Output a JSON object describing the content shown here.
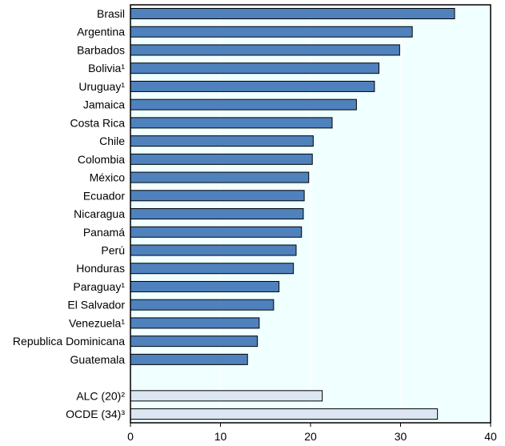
{
  "chart_data": {
    "type": "bar",
    "orientation": "horizontal",
    "categories": [
      "Brasil",
      "Argentina",
      "Barbados",
      "Bolivia¹",
      "Uruguay¹",
      "Jamaica",
      "Costa Rica",
      "Chile",
      "Colombia",
      "México",
      "Ecuador",
      "Nicaragua",
      "Panamá",
      "Perú",
      "Honduras",
      "Paraguay¹",
      "El Salvador",
      "Venezuela¹",
      "Republica Dominicana",
      "Guatemala",
      "",
      "ALC (20)²",
      "OCDE (34)³"
    ],
    "values": [
      36.0,
      31.3,
      29.9,
      27.6,
      27.1,
      25.1,
      22.4,
      20.3,
      20.2,
      19.8,
      19.3,
      19.2,
      19.0,
      18.4,
      18.1,
      16.5,
      15.9,
      14.3,
      14.1,
      13.0,
      null,
      21.3,
      34.1
    ],
    "highlight": [
      "ALC (20)²",
      "OCDE (34)³"
    ],
    "xlim": [
      0,
      40
    ],
    "xticks": [
      0,
      10,
      20,
      30,
      40
    ],
    "grid": true,
    "colors": {
      "bar": "#4f81bd",
      "highlight": "#dce6f2",
      "plot_bg": "#f0ffff",
      "grid": "#ffffff"
    },
    "title": "",
    "xlabel": "",
    "ylabel": ""
  }
}
